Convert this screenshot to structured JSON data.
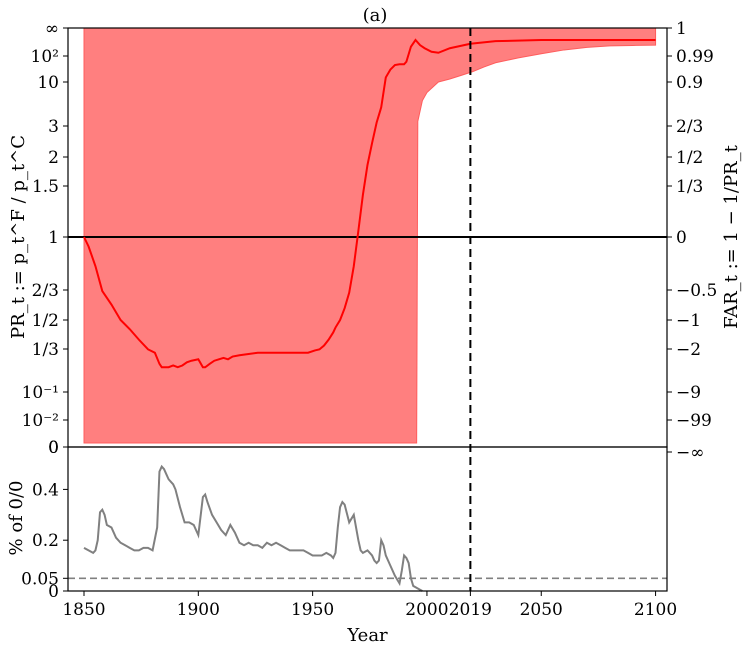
{
  "title": "(a)",
  "chart_data": [
    {
      "type": "line",
      "panel": "top",
      "ylabel_left": "PR_t := p_t^F / p_t^C",
      "ylabel_right": "FAR_t := 1 − 1/PR_t",
      "left_ticks": [
        "∞",
        "10²",
        "10",
        "3",
        "2",
        "1.5",
        "1",
        "2/3",
        "1/2",
        "1/3",
        "10⁻¹",
        "10⁻²",
        "0"
      ],
      "right_ticks": [
        "1",
        "0.99",
        "0.9",
        "2/3",
        "1/2",
        "1/3",
        "0",
        "−0.5",
        "−1",
        "−2",
        "−9",
        "−99",
        "−∞"
      ],
      "xlim": [
        1843,
        2105
      ],
      "reference_line_pr": 1,
      "vline_year": 2019,
      "colors": {
        "line": "#ff0000",
        "band": "#ff7f7f",
        "reference": "#000000"
      },
      "series": [
        {
          "kind": "line",
          "x": [
            1850,
            1852,
            1855,
            1858,
            1862,
            1866,
            1870,
            1874,
            1878,
            1881,
            1883,
            1884,
            1885,
            1887,
            1889,
            1891,
            1893,
            1895,
            1897,
            1900,
            1902,
            1903,
            1905,
            1907,
            1909,
            1911,
            1913,
            1915,
            1918,
            1922,
            1926,
            1930,
            1935,
            1940,
            1944,
            1948,
            1951,
            1953,
            1955,
            1957,
            1959,
            1960,
            1962,
            1964,
            1966,
            1968,
            1970,
            1972,
            1974,
            1976,
            1978,
            1980,
            1982,
            1984,
            1986,
            1988,
            1990,
            1991,
            1993,
            1995,
            1997,
            1999,
            2002,
            2005,
            2010,
            2019,
            2030,
            2050,
            2070,
            2100
          ],
          "y_pr": [
            1,
            0.93,
            0.8,
            0.66,
            0.58,
            0.5,
            0.44,
            0.38,
            0.33,
            0.3,
            0.22,
            0.2,
            0.2,
            0.2,
            0.21,
            0.2,
            0.21,
            0.23,
            0.24,
            0.25,
            0.2,
            0.2,
            0.22,
            0.24,
            0.25,
            0.26,
            0.25,
            0.27,
            0.28,
            0.29,
            0.3,
            0.3,
            0.3,
            0.3,
            0.3,
            0.3,
            0.32,
            0.33,
            0.35,
            0.38,
            0.42,
            0.45,
            0.5,
            0.56,
            0.65,
            0.8,
            1.05,
            1.4,
            1.85,
            2.4,
            3.3,
            5,
            15,
            30,
            45,
            48,
            48,
            60,
            150,
            200,
            160,
            140,
            120,
            115,
            140,
            170,
            190,
            205,
            212,
            215
          ]
        },
        {
          "kind": "band",
          "x": [
            1850,
            1995.5,
            1996,
            1998,
            2000,
            2005,
            2010,
            2015,
            2020,
            2025,
            2030,
            2040,
            2050,
            2060,
            2070,
            2080,
            2090,
            2100
          ],
          "lower_pr": [
            0,
            0,
            3.4,
            6,
            7.5,
            10,
            13,
            18,
            25,
            38,
            55,
            85,
            110,
            130,
            145,
            155,
            158,
            160
          ],
          "upper_pr": [
            "∞",
            "∞"
          ]
        }
      ]
    },
    {
      "type": "line",
      "panel": "bottom",
      "ylabel": "% of 0/0",
      "xlabel": "Year",
      "x_ticks": [
        "1850",
        "1900",
        "1950",
        "2000",
        "2019",
        "2050",
        "2100"
      ],
      "y_ticks": [
        "0",
        "0.05",
        "0.2",
        "0.4"
      ],
      "ylim": [
        0,
        0.5
      ],
      "xlim": [
        1843,
        2105
      ],
      "dashed_level": 0.05,
      "vline_year": 2019,
      "colors": {
        "line": "#808080",
        "dashed": "#808080"
      },
      "x": [
        1850,
        1852,
        1854,
        1855,
        1856,
        1857,
        1858,
        1859,
        1860,
        1862,
        1864,
        1866,
        1868,
        1870,
        1872,
        1874,
        1876,
        1878,
        1880,
        1882,
        1883,
        1884,
        1885,
        1886,
        1887,
        1888,
        1889,
        1890,
        1892,
        1894,
        1896,
        1898,
        1900,
        1902,
        1903,
        1904,
        1906,
        1908,
        1910,
        1912,
        1914,
        1916,
        1918,
        1920,
        1922,
        1924,
        1926,
        1928,
        1930,
        1932,
        1934,
        1936,
        1938,
        1940,
        1942,
        1944,
        1946,
        1948,
        1950,
        1952,
        1954,
        1956,
        1958,
        1959,
        1960,
        1961,
        1962,
        1963,
        1964,
        1966,
        1968,
        1970,
        1971,
        1972,
        1974,
        1976,
        1977,
        1978,
        1979,
        1980,
        1981,
        1982,
        1984,
        1986,
        1988,
        1989,
        1990,
        1991,
        1992,
        1993,
        1994,
        1996,
        1998
      ],
      "y": [
        0.17,
        0.16,
        0.15,
        0.16,
        0.2,
        0.31,
        0.32,
        0.3,
        0.26,
        0.25,
        0.21,
        0.19,
        0.18,
        0.17,
        0.16,
        0.16,
        0.17,
        0.17,
        0.16,
        0.25,
        0.47,
        0.49,
        0.48,
        0.46,
        0.44,
        0.43,
        0.42,
        0.4,
        0.33,
        0.27,
        0.27,
        0.26,
        0.22,
        0.37,
        0.38,
        0.35,
        0.3,
        0.27,
        0.24,
        0.22,
        0.26,
        0.23,
        0.19,
        0.18,
        0.19,
        0.18,
        0.18,
        0.17,
        0.19,
        0.18,
        0.19,
        0.18,
        0.17,
        0.16,
        0.16,
        0.16,
        0.16,
        0.15,
        0.14,
        0.14,
        0.14,
        0.15,
        0.14,
        0.13,
        0.15,
        0.25,
        0.33,
        0.35,
        0.34,
        0.27,
        0.3,
        0.2,
        0.16,
        0.15,
        0.16,
        0.14,
        0.12,
        0.11,
        0.12,
        0.2,
        0.18,
        0.14,
        0.1,
        0.06,
        0.03,
        0.08,
        0.14,
        0.13,
        0.11,
        0.05,
        0.02,
        0.01,
        0
      ]
    }
  ]
}
